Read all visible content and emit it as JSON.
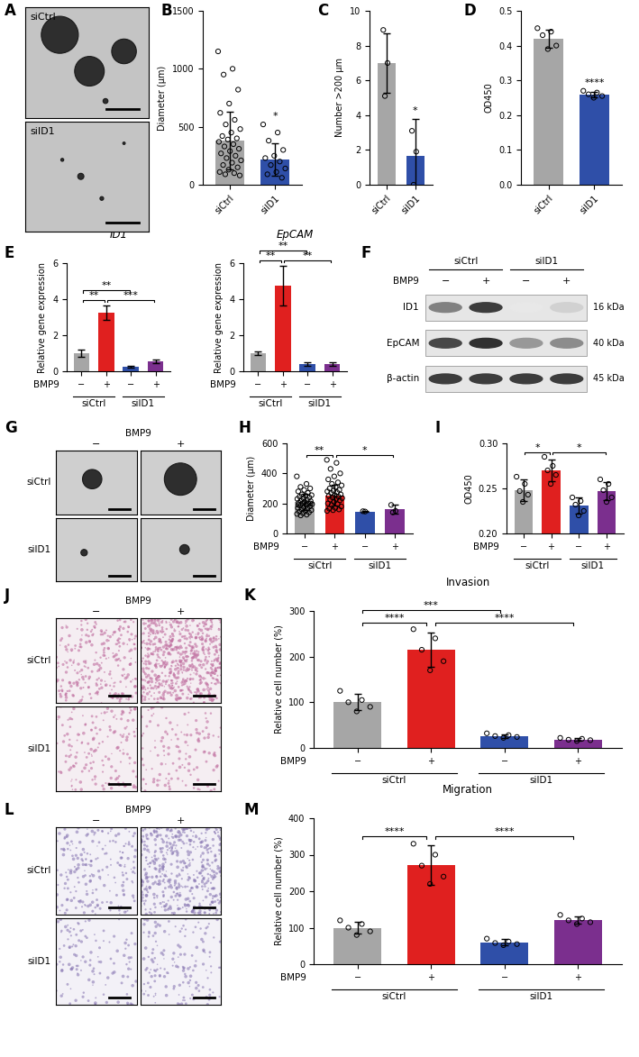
{
  "chart_data": [
    {
      "panel": "B",
      "type": "bar",
      "y_label": "Diameter (μm)",
      "categories": [
        "siCtrl",
        "siID1"
      ],
      "values": [
        380,
        215
      ],
      "error": [
        250,
        140
      ],
      "points": [
        [
          1150,
          1000,
          950,
          820,
          700,
          620,
          560,
          520,
          480,
          450,
          420,
          400,
          390,
          370,
          350,
          330,
          310,
          290,
          270,
          250,
          230,
          210,
          190,
          170,
          150,
          130,
          110,
          100,
          90,
          80
        ],
        [
          520,
          450,
          380,
          300,
          250,
          230,
          200,
          170,
          140,
          110,
          90,
          60
        ]
      ],
      "colors": [
        "#a6a6a6",
        "#2f4fa8"
      ],
      "ylim": [
        0,
        1500
      ],
      "yticks": [
        0,
        500,
        1000,
        1500
      ],
      "significance": [
        {
          "over": 1,
          "label": "*"
        }
      ]
    },
    {
      "panel": "C",
      "type": "bar",
      "y_label": "Number >200 μm",
      "categories": [
        "siCtrl",
        "siID1"
      ],
      "values": [
        7.0,
        1.67
      ],
      "error": [
        1.7,
        2.1
      ],
      "points": [
        [
          8.9,
          7.0,
          5.1
        ],
        [
          3.1,
          1.9,
          0.0
        ]
      ],
      "colors": [
        "#a6a6a6",
        "#2f4fa8"
      ],
      "ylim": [
        0,
        10
      ],
      "yticks": [
        0,
        2,
        4,
        6,
        8,
        10
      ],
      "significance": [
        {
          "over": 1,
          "label": "*"
        }
      ]
    },
    {
      "panel": "D",
      "type": "bar",
      "y_label": "OD450",
      "categories": [
        "siCtrl",
        "siID1"
      ],
      "values": [
        0.42,
        0.26
      ],
      "error": [
        0.025,
        0.008
      ],
      "points": [
        [
          0.45,
          0.44,
          0.43,
          0.4,
          0.39
        ],
        [
          0.27,
          0.265,
          0.26,
          0.255,
          0.25
        ]
      ],
      "colors": [
        "#a6a6a6",
        "#2f4fa8"
      ],
      "ylim": [
        0,
        0.5
      ],
      "yticks": [
        {
          "value": 0,
          "label": "0.0"
        },
        0.1,
        0.2,
        0.3,
        0.4,
        0.5
      ],
      "significance": [
        {
          "over": 1,
          "label": "****"
        }
      ]
    },
    {
      "panel": "E",
      "type": "bar",
      "title": "ID1",
      "y_label": "Relative gene expression",
      "categories": [
        "−",
        "+",
        "−",
        "+"
      ],
      "groups": [
        "siCtrl",
        "siID1"
      ],
      "group_label": "BMP9",
      "values": [
        1.0,
        3.25,
        0.25,
        0.55
      ],
      "error": [
        0.2,
        0.4,
        0.05,
        0.1
      ],
      "colors": [
        "#a6a6a6",
        "#e0201f",
        "#2f4fa8",
        "#7b2f8e"
      ],
      "ylim": [
        0,
        6
      ],
      "yticks": [
        0,
        2,
        4,
        6
      ],
      "significance": [
        {
          "from": 0,
          "to": 1,
          "label": "**"
        },
        {
          "from": 1,
          "to": 3,
          "label": "***"
        },
        {
          "from": 0,
          "to": 2,
          "label": "**"
        }
      ]
    },
    {
      "type": "bar",
      "title": "EpCAM",
      "y_label": "Relative gene expression",
      "categories": [
        "−",
        "+",
        "−",
        "+"
      ],
      "groups": [
        "siCtrl",
        "siID1"
      ],
      "group_label": "BMP9",
      "values": [
        1.0,
        4.75,
        0.4,
        0.4
      ],
      "error": [
        0.12,
        1.1,
        0.1,
        0.08
      ],
      "colors": [
        "#a6a6a6",
        "#e0201f",
        "#2f4fa8",
        "#7b2f8e"
      ],
      "ylim": [
        0,
        6
      ],
      "yticks": [
        0,
        2,
        4,
        6
      ],
      "significance": [
        {
          "from": 0,
          "to": 1,
          "label": "**"
        },
        {
          "from": 1,
          "to": 3,
          "label": "**"
        },
        {
          "from": 0,
          "to": 2,
          "label": "**"
        }
      ]
    },
    {
      "panel": "H",
      "type": "bar",
      "y_label": "Diameter (μm)",
      "categories": [
        "−",
        "+",
        "−",
        "+"
      ],
      "groups": [
        "siCtrl",
        "siID1"
      ],
      "group_label": "BMP9",
      "values": [
        210,
        255,
        147,
        160
      ],
      "error": [
        55,
        70,
        2,
        30
      ],
      "points": [
        [
          380,
          330,
          310,
          300,
          290,
          280,
          270,
          260,
          255,
          250,
          245,
          240,
          235,
          230,
          225,
          220,
          215,
          210,
          205,
          200,
          200,
          195,
          190,
          185,
          180,
          175,
          170,
          165,
          160,
          155,
          150,
          145,
          140,
          135,
          130,
          125,
          120,
          200,
          210,
          190
        ],
        [
          490,
          470,
          430,
          400,
          380,
          360,
          340,
          330,
          320,
          310,
          300,
          290,
          285,
          280,
          275,
          270,
          260,
          255,
          250,
          245,
          240,
          235,
          230,
          225,
          220,
          210,
          200,
          195,
          190,
          180,
          170,
          165,
          160,
          155,
          150
        ],
        [
          148,
          146
        ],
        [
          190,
          150,
          140
        ]
      ],
      "colors": [
        "#a6a6a6",
        "#e0201f",
        "#2f4fa8",
        "#7b2f8e"
      ],
      "ylim": [
        0,
        600
      ],
      "yticks": [
        0,
        200,
        400,
        600
      ],
      "significance": [
        {
          "from": 0,
          "to": 1,
          "label": "**"
        },
        {
          "from": 1,
          "to": 3,
          "label": "*"
        }
      ]
    },
    {
      "panel": "I",
      "type": "bar",
      "y_label": "OD450",
      "categories": [
        "−",
        "+",
        "−",
        "+"
      ],
      "groups": [
        "siCtrl",
        "siID1"
      ],
      "group_label": "BMP9",
      "values": [
        0.248,
        0.27,
        0.231,
        0.247
      ],
      "error": [
        0.012,
        0.012,
        0.009,
        0.01
      ],
      "points": [
        [
          0.263,
          0.255,
          0.247,
          0.243,
          0.235
        ],
        [
          0.285,
          0.275,
          0.27,
          0.265,
          0.255
        ],
        [
          0.24,
          0.236,
          0.232,
          0.225,
          0.22
        ],
        [
          0.26,
          0.255,
          0.248,
          0.24,
          0.235
        ]
      ],
      "colors": [
        "#a6a6a6",
        "#e0201f",
        "#2f4fa8",
        "#7b2f8e"
      ],
      "ylim": [
        0.2,
        0.3
      ],
      "yticks": [
        {
          "value": 0.2,
          "label": "0.20"
        },
        {
          "value": 0.25,
          "label": "0.25"
        },
        {
          "value": 0.3,
          "label": "0.30"
        }
      ],
      "significance": [
        {
          "from": 0,
          "to": 1,
          "label": "*"
        },
        {
          "from": 1,
          "to": 3,
          "label": "*"
        }
      ]
    },
    {
      "panel": "K",
      "type": "bar",
      "title": "Invasion",
      "y_label": "Relative cell number (%)",
      "categories": [
        "−",
        "+",
        "−",
        "+"
      ],
      "groups": [
        "siCtrl",
        "siID1"
      ],
      "group_label": "BMP9",
      "values": [
        100,
        215,
        26,
        18
      ],
      "error": [
        18,
        38,
        4,
        3
      ],
      "points": [
        [
          125,
          105,
          100,
          90,
          80
        ],
        [
          260,
          240,
          215,
          190,
          170
        ],
        [
          32,
          28,
          26,
          24,
          22
        ],
        [
          22,
          20,
          18,
          17,
          15
        ]
      ],
      "colors": [
        "#a6a6a6",
        "#e0201f",
        "#2f4fa8",
        "#7b2f8e"
      ],
      "ylim": [
        0,
        300
      ],
      "yticks": [
        0,
        100,
        200,
        300
      ],
      "significance": [
        {
          "from": 0,
          "to": 1,
          "label": "****"
        },
        {
          "from": 1,
          "to": 3,
          "label": "****"
        },
        {
          "from": 0,
          "to": 2,
          "label": "***"
        }
      ]
    },
    {
      "panel": "M",
      "type": "bar",
      "title": "Migration",
      "y_label": "Relative cell number (%)",
      "categories": [
        "−",
        "+",
        "−",
        "+"
      ],
      "groups": [
        "siCtrl",
        "siID1"
      ],
      "group_label": "BMP9",
      "values": [
        100,
        272,
        60,
        121
      ],
      "error": [
        17,
        55,
        8,
        10
      ],
      "points": [
        [
          120,
          110,
          100,
          90,
          80
        ],
        [
          330,
          300,
          270,
          240,
          220
        ],
        [
          70,
          62,
          58,
          55,
          52
        ],
        [
          135,
          125,
          120,
          115,
          110
        ]
      ],
      "colors": [
        "#a6a6a6",
        "#e0201f",
        "#2f4fa8",
        "#7b2f8e"
      ],
      "ylim": [
        0,
        400
      ],
      "yticks": [
        0,
        100,
        200,
        300,
        400
      ],
      "significance": [
        {
          "from": 0,
          "to": 1,
          "label": "****"
        },
        {
          "from": 1,
          "to": 3,
          "label": "****"
        }
      ]
    }
  ],
  "images": [
    {
      "panel": "A",
      "rows": [
        "siCtrl",
        "siID1"
      ]
    },
    {
      "panel": "G",
      "column_title": "BMP9",
      "columns": [
        "−",
        "+"
      ],
      "rows": [
        "siCtrl",
        "siID1"
      ]
    },
    {
      "panel": "J",
      "column_title": "BMP9",
      "columns": [
        "−",
        "+"
      ],
      "rows": [
        "siCtrl",
        "siID1"
      ]
    },
    {
      "panel": "L",
      "column_title": "BMP9",
      "columns": [
        "−",
        "+"
      ],
      "rows": [
        "siCtrl",
        "siID1"
      ]
    }
  ],
  "western_blot": {
    "panel": "F",
    "groups": [
      "siCtrl",
      "siID1"
    ],
    "group_label": "BMP9",
    "lanes": [
      "−",
      "+",
      "−",
      "+"
    ],
    "bands": [
      {
        "name": "ID1",
        "size": "16 kDa"
      },
      {
        "name": "EpCAM",
        "size": "40 kDa"
      },
      {
        "name": "β-actin",
        "size": "45 kDa"
      }
    ]
  }
}
